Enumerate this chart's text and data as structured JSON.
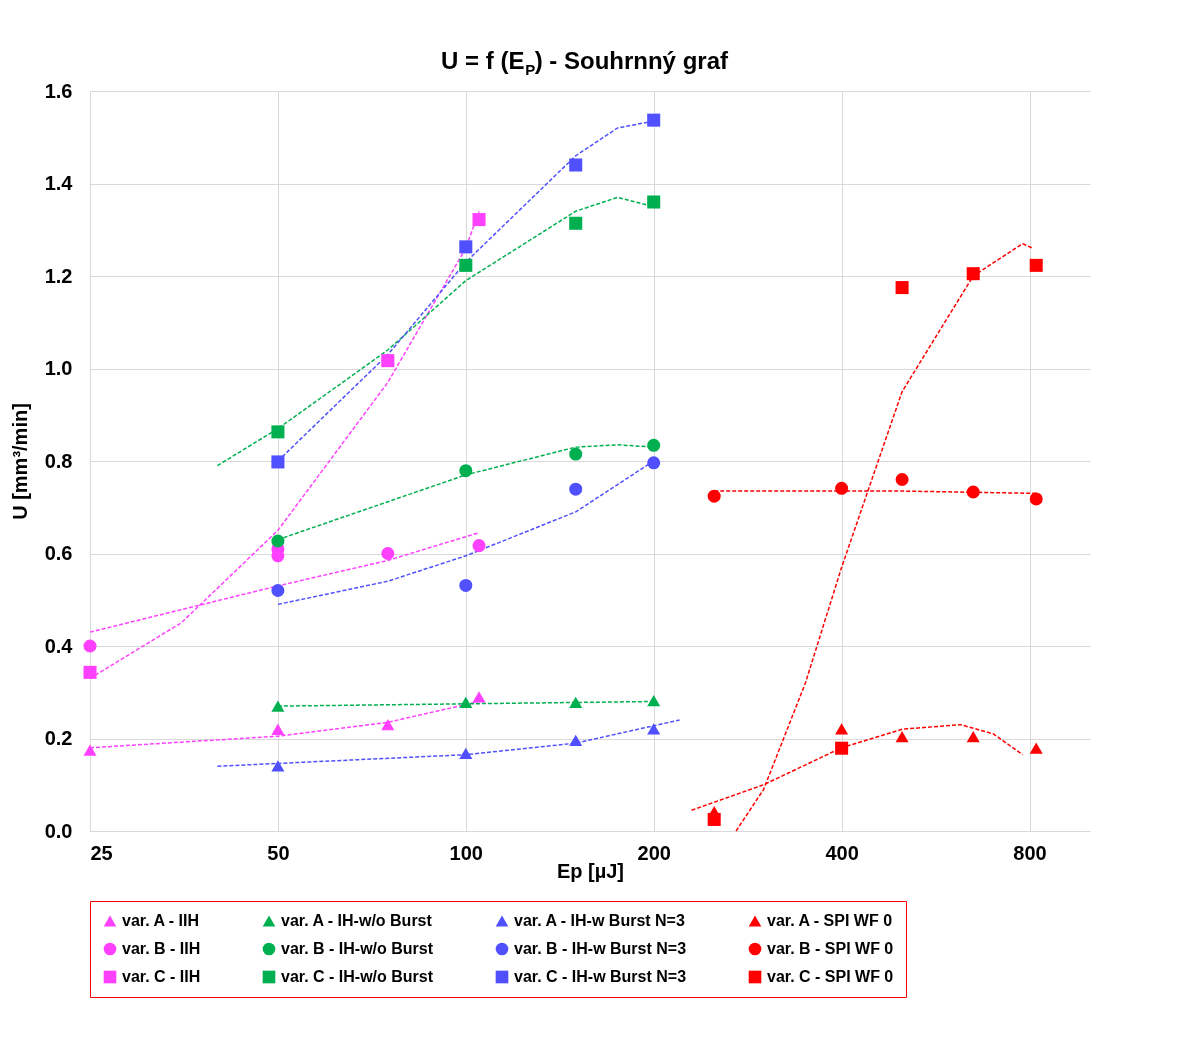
{
  "chart_data": {
    "type": "scatter",
    "title": "U = f (E$_{P}$) - Souhrnný graf",
    "xlabel": "Ep [µJ]",
    "ylabel": "U [mm³/min]",
    "log": "x",
    "xlim": [
      25,
      1000
    ],
    "xticks": [
      25,
      50,
      100,
      200,
      400,
      800
    ],
    "ylim": [
      0,
      1.6
    ],
    "yticks": [
      {
        "value": 0,
        "label": "0.0"
      },
      0.2,
      0.4,
      0.6,
      0.8,
      {
        "value": 1,
        "label": "1.0"
      },
      1.2,
      1.4,
      1.6
    ],
    "grid": true,
    "legend": "bottom",
    "series": [
      {
        "name": "var. A - IIH",
        "marker": "triangle",
        "color": "#ff40ff",
        "x": [
          25,
          50,
          75,
          105
        ],
        "values": [
          0.175,
          0.22,
          0.23,
          0.29
        ]
      },
      {
        "name": "var. A - IH-w/o Burst",
        "marker": "triangle",
        "color": "#00b050",
        "x": [
          50,
          100,
          150,
          200
        ],
        "values": [
          0.27,
          0.278,
          0.278,
          0.282
        ]
      },
      {
        "name": "var. A - IH-w Burst N=3",
        "marker": "triangle",
        "color": "#5050ff",
        "x": [
          50,
          100,
          150,
          200
        ],
        "values": [
          0.141,
          0.168,
          0.196,
          0.221
        ]
      },
      {
        "name": "var. A - SPI WF 0",
        "marker": "triangle",
        "color": "#ff0000",
        "x": [
          250,
          400,
          500,
          650,
          820
        ],
        "values": [
          0.042,
          0.221,
          0.204,
          0.204,
          0.179
        ]
      },
      {
        "name": "var. B - IIH",
        "marker": "circle",
        "color": "#ff40ff",
        "x": [
          25,
          50,
          50,
          75,
          105
        ],
        "values": [
          0.4,
          0.61,
          0.595,
          0.6,
          0.617
        ]
      },
      {
        "name": "var. B - IH-w/o Burst",
        "marker": "circle",
        "color": "#00b050",
        "x": [
          50,
          100,
          150,
          200
        ],
        "values": [
          0.627,
          0.779,
          0.815,
          0.834
        ]
      },
      {
        "name": "var. B - IH-w Burst N=3",
        "marker": "circle",
        "color": "#5050ff",
        "x": [
          50,
          100,
          150,
          200
        ],
        "values": [
          0.52,
          0.531,
          0.739,
          0.796
        ]
      },
      {
        "name": "var. B - SPI WF 0",
        "marker": "circle",
        "color": "#ff0000",
        "x": [
          250,
          400,
          500,
          650,
          820
        ],
        "values": [
          0.724,
          0.741,
          0.76,
          0.733,
          0.718
        ]
      },
      {
        "name": "var. C - IIH",
        "marker": "square",
        "color": "#ff40ff",
        "x": [
          25,
          75,
          105
        ],
        "values": [
          0.343,
          1.017,
          1.322
        ]
      },
      {
        "name": "var. C - IH-w/o Burst",
        "marker": "square",
        "color": "#00b050",
        "x": [
          50,
          100,
          150,
          200
        ],
        "values": [
          0.863,
          1.223,
          1.314,
          1.36
        ]
      },
      {
        "name": "var. C - IH-w Burst N=3",
        "marker": "square",
        "color": "#5050ff",
        "x": [
          50,
          100,
          150,
          200
        ],
        "values": [
          0.798,
          1.263,
          1.44,
          1.537
        ]
      },
      {
        "name": "var. C - SPI WF 0",
        "marker": "square",
        "color": "#ff0000",
        "x": [
          250,
          400,
          500,
          650,
          820
        ],
        "values": [
          0.025,
          0.179,
          1.175,
          1.205,
          1.223
        ]
      },
      {
        "type": "line",
        "line_style": "dashed",
        "color": "#ff40ff",
        "x": [
          25,
          50,
          75,
          105
        ],
        "values": [
          0.18,
          0.205,
          0.235,
          0.28
        ]
      },
      {
        "type": "line",
        "line_style": "dashed",
        "color": "#ff40ff",
        "x": [
          25,
          50,
          75,
          105
        ],
        "values": [
          0.43,
          0.53,
          0.585,
          0.645
        ]
      },
      {
        "type": "line",
        "line_style": "dashed",
        "color": "#ff40ff",
        "x": [
          25,
          35,
          50,
          75,
          100,
          105
        ],
        "values": [
          0.33,
          0.45,
          0.65,
          0.97,
          1.26,
          1.34
        ]
      },
      {
        "type": "line",
        "line_style": "dashed",
        "color": "#00b050",
        "x": [
          50,
          200
        ],
        "values": [
          0.27,
          0.28
        ]
      },
      {
        "type": "line",
        "line_style": "dashed",
        "color": "#00b050",
        "x": [
          50,
          100,
          150,
          175,
          200
        ],
        "values": [
          0.63,
          0.77,
          0.83,
          0.835,
          0.83
        ]
      },
      {
        "type": "line",
        "line_style": "dashed",
        "color": "#00b050",
        "x": [
          40,
          50,
          75,
          100,
          150,
          175,
          200
        ],
        "values": [
          0.79,
          0.87,
          1.04,
          1.19,
          1.34,
          1.37,
          1.35
        ]
      },
      {
        "type": "line",
        "line_style": "dashed",
        "color": "#5050ff",
        "x": [
          40,
          100,
          150,
          220
        ],
        "values": [
          0.14,
          0.165,
          0.19,
          0.24
        ]
      },
      {
        "type": "line",
        "line_style": "dashed",
        "color": "#5050ff",
        "x": [
          50,
          75,
          100,
          150,
          200
        ],
        "values": [
          0.49,
          0.54,
          0.595,
          0.69,
          0.8
        ]
      },
      {
        "type": "line",
        "line_style": "dashed",
        "color": "#5050ff",
        "x": [
          50,
          75,
          100,
          150,
          175,
          200
        ],
        "values": [
          0.8,
          1.03,
          1.23,
          1.46,
          1.52,
          1.535
        ]
      },
      {
        "type": "line",
        "line_style": "dashed",
        "color": "#ff0000",
        "x": [
          230,
          300,
          400,
          500,
          620,
          700,
          780
        ],
        "values": [
          0.045,
          0.1,
          0.18,
          0.22,
          0.23,
          0.21,
          0.165
        ]
      },
      {
        "type": "line",
        "line_style": "dashed",
        "color": "#ff0000",
        "x": [
          250,
          500,
          820
        ],
        "values": [
          0.735,
          0.735,
          0.73
        ]
      },
      {
        "type": "line",
        "line_style": "dashed",
        "color": "#ff0000",
        "x": [
          271,
          300,
          350,
          400,
          500,
          650,
          780,
          810
        ],
        "values": [
          0.0,
          0.09,
          0.32,
          0.57,
          0.95,
          1.2,
          1.27,
          1.26
        ]
      }
    ]
  }
}
